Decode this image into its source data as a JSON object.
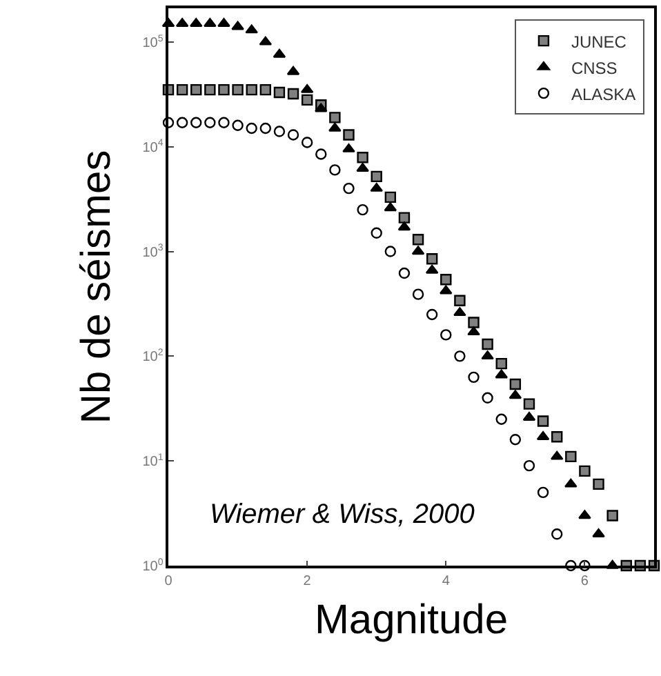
{
  "chart_data": {
    "type": "scatter",
    "xlabel": "Magnitude",
    "ylabel": "Nb de séismes",
    "log": "y",
    "legend": "top right",
    "xlim": [
      0,
      7
    ],
    "xticks": [
      0,
      2,
      4,
      6
    ],
    "ylim": [
      1,
      210000
    ],
    "yticks": [
      {
        "value": 1,
        "label": "10$^{0}$"
      },
      {
        "value": 10,
        "label": "10$^{1}$"
      },
      {
        "value": 100,
        "label": "10$^{2}$"
      },
      {
        "value": 1000,
        "label": "10$^{3}$"
      },
      {
        "value": 10000,
        "label": "10$^{4}$"
      },
      {
        "value": 100000,
        "label": "10$^{5}$"
      }
    ],
    "annotations": [
      "Wiemer & Wiss, 2000"
    ],
    "series": [
      {
        "name": "JUNEC",
        "color": "#808080",
        "marker": "square",
        "x": [
          0,
          0.2,
          0.4,
          0.6,
          0.8,
          1.0,
          1.2,
          1.4,
          1.6,
          1.8,
          2.0,
          2.2,
          2.4,
          2.6,
          2.8,
          3.0,
          3.2,
          3.4,
          3.6,
          3.8,
          4.0,
          4.2,
          4.4,
          4.6,
          4.8,
          5.0,
          5.2,
          5.4,
          5.6,
          5.8,
          6.0,
          6.2,
          6.4,
          6.6,
          6.8,
          7.0
        ],
        "values": [
          35000,
          35000,
          35000,
          35000,
          35000,
          35000,
          35000,
          35000,
          33000,
          32000,
          28000,
          25000,
          19000,
          13000,
          7900,
          5200,
          3300,
          2100,
          1300,
          850,
          540,
          340,
          210,
          130,
          85,
          54,
          35,
          24,
          17,
          11,
          8,
          6,
          3,
          1,
          1,
          1
        ]
      },
      {
        "name": "CNSS",
        "color": "#000000",
        "marker": "triangle",
        "x": [
          0,
          0.2,
          0.4,
          0.6,
          0.8,
          1.0,
          1.2,
          1.4,
          1.6,
          1.8,
          2.0,
          2.2,
          2.4,
          2.6,
          2.8,
          3.0,
          3.2,
          3.4,
          3.6,
          3.8,
          4.0,
          4.2,
          4.4,
          4.6,
          4.8,
          5.0,
          5.2,
          5.4,
          5.6,
          5.8,
          6.0,
          6.2,
          6.4
        ],
        "values": [
          150000,
          150000,
          150000,
          150000,
          150000,
          140000,
          130000,
          100000,
          76000,
          52000,
          35000,
          23000,
          15000,
          9500,
          6200,
          4000,
          2600,
          1700,
          1000,
          660,
          420,
          260,
          170,
          100,
          66,
          42,
          26,
          17,
          11,
          6,
          3,
          2,
          1
        ]
      },
      {
        "name": "ALASKA",
        "color": "#000000",
        "marker": "circle",
        "x": [
          0,
          0.2,
          0.4,
          0.6,
          0.8,
          1.0,
          1.2,
          1.4,
          1.6,
          1.8,
          2.0,
          2.2,
          2.4,
          2.6,
          2.8,
          3.0,
          3.2,
          3.4,
          3.6,
          3.8,
          4.0,
          4.2,
          4.4,
          4.6,
          4.8,
          5.0,
          5.2,
          5.4,
          5.6,
          5.8,
          6.0
        ],
        "values": [
          17000,
          17000,
          17000,
          17000,
          17000,
          16000,
          15000,
          15000,
          14000,
          13000,
          11000,
          8500,
          6000,
          4000,
          2500,
          1500,
          1000,
          620,
          390,
          250,
          160,
          100,
          63,
          40,
          25,
          16,
          9,
          5,
          2,
          1,
          1
        ]
      }
    ]
  }
}
